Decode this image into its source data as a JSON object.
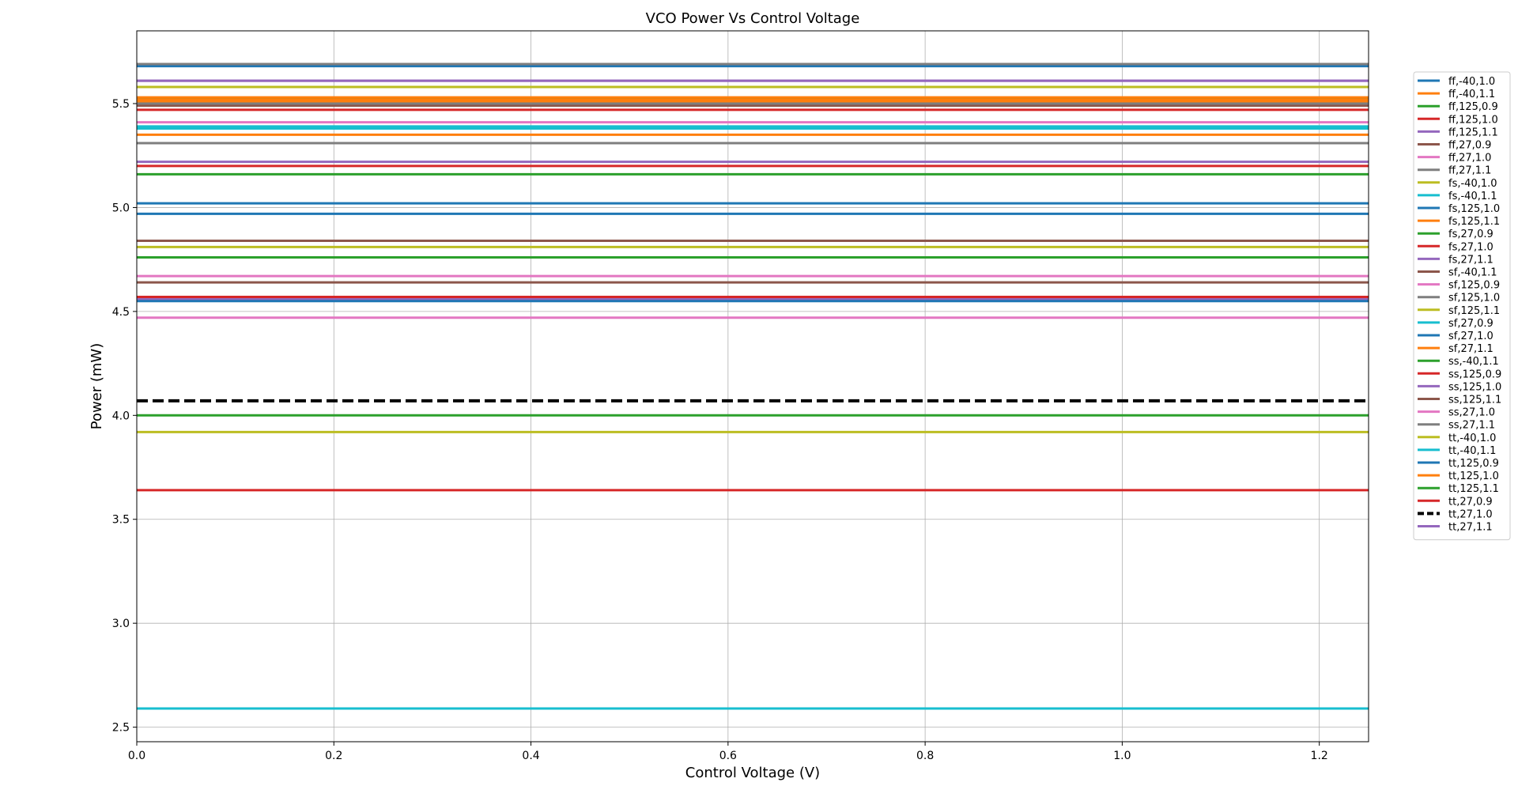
{
  "chart_data": {
    "type": "line",
    "title": "VCO Power Vs Control Voltage",
    "xlabel": "Control Voltage (V)",
    "ylabel": "Power (mW)",
    "xlim": [
      0.0,
      1.25
    ],
    "ylim": [
      2.43,
      5.85
    ],
    "x_ticks": [
      "0.0",
      "0.2",
      "0.4",
      "0.6",
      "0.8",
      "1.0",
      "1.2"
    ],
    "y_ticks": [
      "2.5",
      "3.0",
      "3.5",
      "4.0",
      "4.5",
      "5.0",
      "5.5"
    ],
    "grid": true,
    "legend_position": "right",
    "x": [
      0.0,
      1.25
    ],
    "series": [
      {
        "name": "ff,-40,1.0",
        "color": "#1f77b4",
        "dash": false,
        "values": [
          5.68,
          5.68
        ]
      },
      {
        "name": "ff,-40,1.1",
        "color": "#ff7f0e",
        "dash": false,
        "values": [
          5.53,
          5.53
        ]
      },
      {
        "name": "ff,125,0.9",
        "color": "#2ca02c",
        "dash": false,
        "values": [
          5.52,
          5.52
        ]
      },
      {
        "name": "ff,125,1.0",
        "color": "#d62728",
        "dash": false,
        "values": [
          5.47,
          5.47
        ]
      },
      {
        "name": "ff,125,1.1",
        "color": "#9467bd",
        "dash": false,
        "values": [
          5.61,
          5.61
        ]
      },
      {
        "name": "ff,27,0.9",
        "color": "#8c564b",
        "dash": false,
        "values": [
          5.49,
          5.49
        ]
      },
      {
        "name": "ff,27,1.0",
        "color": "#e377c2",
        "dash": false,
        "values": [
          5.41,
          5.41
        ]
      },
      {
        "name": "ff,27,1.1",
        "color": "#7f7f7f",
        "dash": false,
        "values": [
          5.69,
          5.69
        ]
      },
      {
        "name": "fs,-40,1.0",
        "color": "#bcbd22",
        "dash": false,
        "values": [
          5.58,
          5.58
        ]
      },
      {
        "name": "fs,-40,1.1",
        "color": "#17becf",
        "dash": false,
        "values": [
          5.38,
          5.38
        ]
      },
      {
        "name": "fs,125,1.0",
        "color": "#1f77b4",
        "dash": false,
        "values": [
          5.02,
          5.02
        ]
      },
      {
        "name": "fs,125,1.1",
        "color": "#ff7f0e",
        "dash": false,
        "values": [
          5.35,
          5.35
        ]
      },
      {
        "name": "fs,27,0.9",
        "color": "#2ca02c",
        "dash": false,
        "values": [
          5.16,
          5.16
        ]
      },
      {
        "name": "fs,27,1.0",
        "color": "#d62728",
        "dash": false,
        "values": [
          5.2,
          5.2
        ]
      },
      {
        "name": "fs,27,1.1",
        "color": "#9467bd",
        "dash": false,
        "values": [
          5.22,
          5.22
        ]
      },
      {
        "name": "sf,-40,1.1",
        "color": "#8c564b",
        "dash": false,
        "values": [
          4.84,
          4.84
        ]
      },
      {
        "name": "sf,125,0.9",
        "color": "#e377c2",
        "dash": false,
        "values": [
          4.47,
          4.47
        ]
      },
      {
        "name": "sf,125,1.0",
        "color": "#7f7f7f",
        "dash": false,
        "values": [
          5.31,
          5.31
        ]
      },
      {
        "name": "sf,125,1.1",
        "color": "#bcbd22",
        "dash": false,
        "values": [
          4.81,
          4.81
        ]
      },
      {
        "name": "sf,27,0.9",
        "color": "#17becf",
        "dash": false,
        "values": [
          2.59,
          2.59
        ]
      },
      {
        "name": "sf,27,1.0",
        "color": "#1f77b4",
        "dash": false,
        "values": [
          4.97,
          4.97
        ]
      },
      {
        "name": "sf,27,1.1",
        "color": "#ff7f0e",
        "dash": false,
        "values": [
          5.51,
          5.51
        ]
      },
      {
        "name": "ss,-40,1.1",
        "color": "#2ca02c",
        "dash": false,
        "values": [
          4.76,
          4.76
        ]
      },
      {
        "name": "ss,125,0.9",
        "color": "#d62728",
        "dash": false,
        "values": [
          3.64,
          3.64
        ]
      },
      {
        "name": "ss,125,1.0",
        "color": "#9467bd",
        "dash": false,
        "values": [
          4.56,
          4.56
        ]
      },
      {
        "name": "ss,125,1.1",
        "color": "#8c564b",
        "dash": false,
        "values": [
          4.64,
          4.64
        ]
      },
      {
        "name": "ss,27,1.0",
        "color": "#e377c2",
        "dash": false,
        "values": [
          4.67,
          4.67
        ]
      },
      {
        "name": "ss,27,1.1",
        "color": "#7f7f7f",
        "dash": false,
        "values": [
          5.5,
          5.5
        ]
      },
      {
        "name": "tt,-40,1.0",
        "color": "#bcbd22",
        "dash": false,
        "values": [
          3.92,
          3.92
        ]
      },
      {
        "name": "tt,-40,1.1",
        "color": "#17becf",
        "dash": false,
        "values": [
          5.39,
          5.39
        ]
      },
      {
        "name": "tt,125,0.9",
        "color": "#1f77b4",
        "dash": false,
        "values": [
          4.55,
          4.55
        ]
      },
      {
        "name": "tt,125,1.0",
        "color": "#ff7f0e",
        "dash": false,
        "values": [
          5.52,
          5.52
        ]
      },
      {
        "name": "tt,125,1.1",
        "color": "#2ca02c",
        "dash": false,
        "values": [
          4.0,
          4.0
        ]
      },
      {
        "name": "tt,27,0.9",
        "color": "#d62728",
        "dash": false,
        "values": [
          4.57,
          4.57
        ]
      },
      {
        "name": "tt,27,1.0",
        "color": "#000000",
        "dash": true,
        "values": [
          4.07,
          4.07
        ]
      },
      {
        "name": "tt,27,1.1",
        "color": "#9467bd",
        "dash": false,
        "values": [
          5.61,
          5.61
        ]
      }
    ]
  }
}
